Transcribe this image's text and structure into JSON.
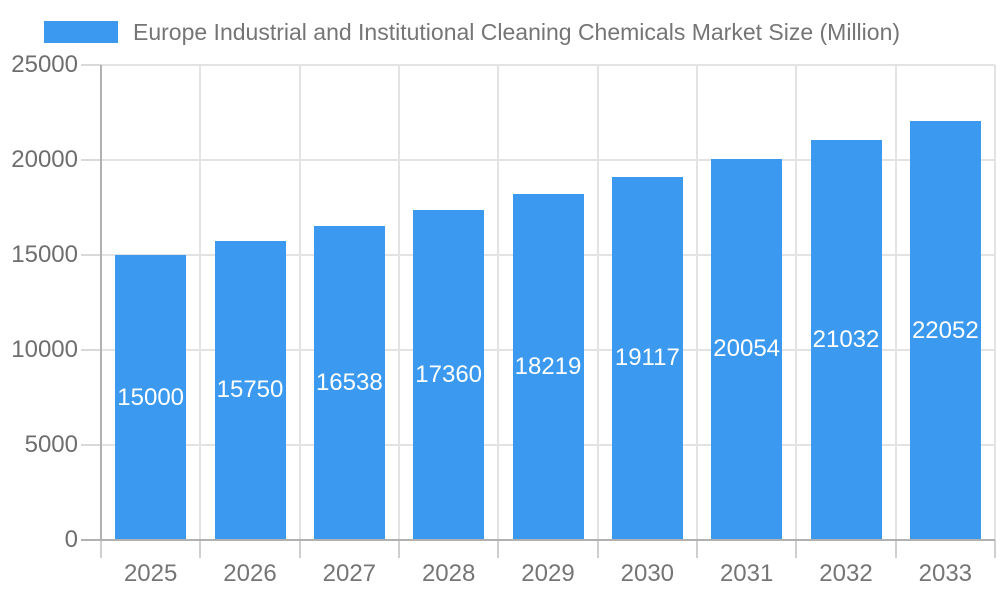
{
  "chart_data": {
    "type": "bar",
    "title": "Europe Industrial and Institutional Cleaning Chemicals Market Size (Million)",
    "legend": {
      "label": "Europe Industrial and Institutional Cleaning Chemicals Market Size (Million)",
      "position": "top-left"
    },
    "categories": [
      "2025",
      "2026",
      "2027",
      "2028",
      "2029",
      "2030",
      "2031",
      "2032",
      "2033"
    ],
    "values": [
      15000,
      15750,
      16538,
      17360,
      18219,
      19117,
      20054,
      21032,
      22052
    ],
    "data_labels_visible": true,
    "xlabel": "",
    "ylabel": "",
    "ylim": [
      0,
      25000
    ],
    "yticks": [
      0,
      5000,
      10000,
      15000,
      20000,
      25000
    ],
    "grid": true,
    "colors": {
      "bar": "#3B9AEF",
      "bar_value_label": "#ffffff",
      "gridline": "#e3e3e3",
      "axis_line": "#b1b1b1",
      "tick_stub": "#cfcfcf",
      "axis_text": "#6e6e6e",
      "legend_text": "#757575",
      "background": "#ffffff"
    }
  }
}
